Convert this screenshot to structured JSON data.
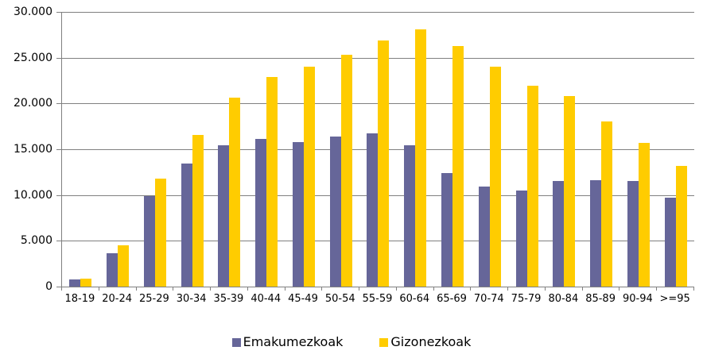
{
  "chart_data": {
    "type": "bar",
    "title": "",
    "xlabel": "",
    "ylabel": "",
    "categories": [
      "18-19",
      "20-24",
      "25-29",
      "30-34",
      "35-39",
      "40-44",
      "45-49",
      "50-54",
      "55-59",
      "60-64",
      "65-69",
      "70-74",
      "75-79",
      "80-84",
      "85-89",
      "90-94",
      ">=95"
    ],
    "series": [
      {
        "name": "Emakumezkoak",
        "color": "#666699",
        "values": [
          800,
          3600,
          9900,
          13400,
          15400,
          16100,
          15800,
          16400,
          16700,
          15400,
          12400,
          10900,
          10500,
          11500,
          11600,
          11500,
          9700
        ]
      },
      {
        "name": "Gizonezkoak",
        "color": "#FFCC00",
        "values": [
          900,
          4500,
          11800,
          16600,
          20600,
          22900,
          24000,
          25300,
          26900,
          28100,
          26300,
          24000,
          21900,
          20800,
          18000,
          15700,
          13200
        ]
      }
    ],
    "ylim": [
      0,
      30000
    ],
    "ytick_step": 5000,
    "ytick_labels": [
      "0",
      "5.000",
      "10.000",
      "15.000",
      "20.000",
      "25.000",
      "30.000"
    ],
    "grid": true,
    "legend_position": "bottom",
    "axis_color": "#808080",
    "text_color": "#000000",
    "background_color": "#ffffff"
  }
}
